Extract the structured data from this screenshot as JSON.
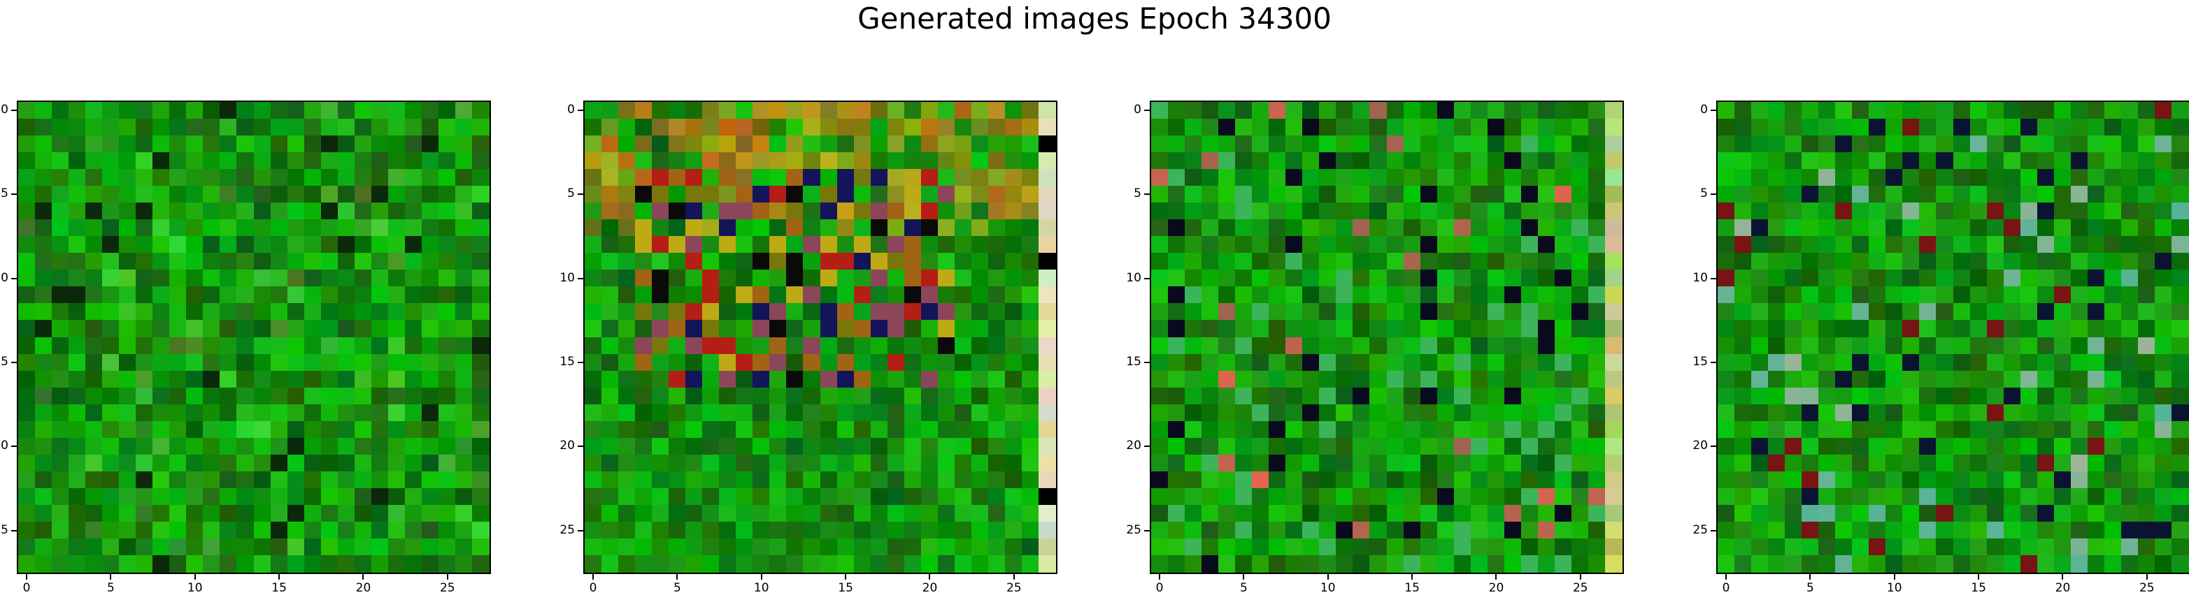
{
  "figure": {
    "title": "Generated images Epoch 34300"
  },
  "axes": {
    "x_ticks": [
      "0",
      "5",
      "10",
      "15",
      "20",
      "25"
    ],
    "y_ticks": [
      "0",
      "5",
      "10",
      "15",
      "20",
      "25"
    ]
  },
  "panels": [
    {
      "name": "image-1",
      "palette": "uniform-green"
    },
    {
      "name": "image-2",
      "palette": "mixed-colorful"
    },
    {
      "name": "image-3",
      "palette": "green-sparse-colors"
    },
    {
      "name": "image-4",
      "palette": "green-teal-speckled"
    }
  ],
  "colors": {
    "base_green": "#0a7a0a",
    "accent_red": "#c81414",
    "accent_yellow": "#c8b414",
    "accent_navy": "#0a0a5a",
    "accent_pale": "#e0e8c8"
  }
}
